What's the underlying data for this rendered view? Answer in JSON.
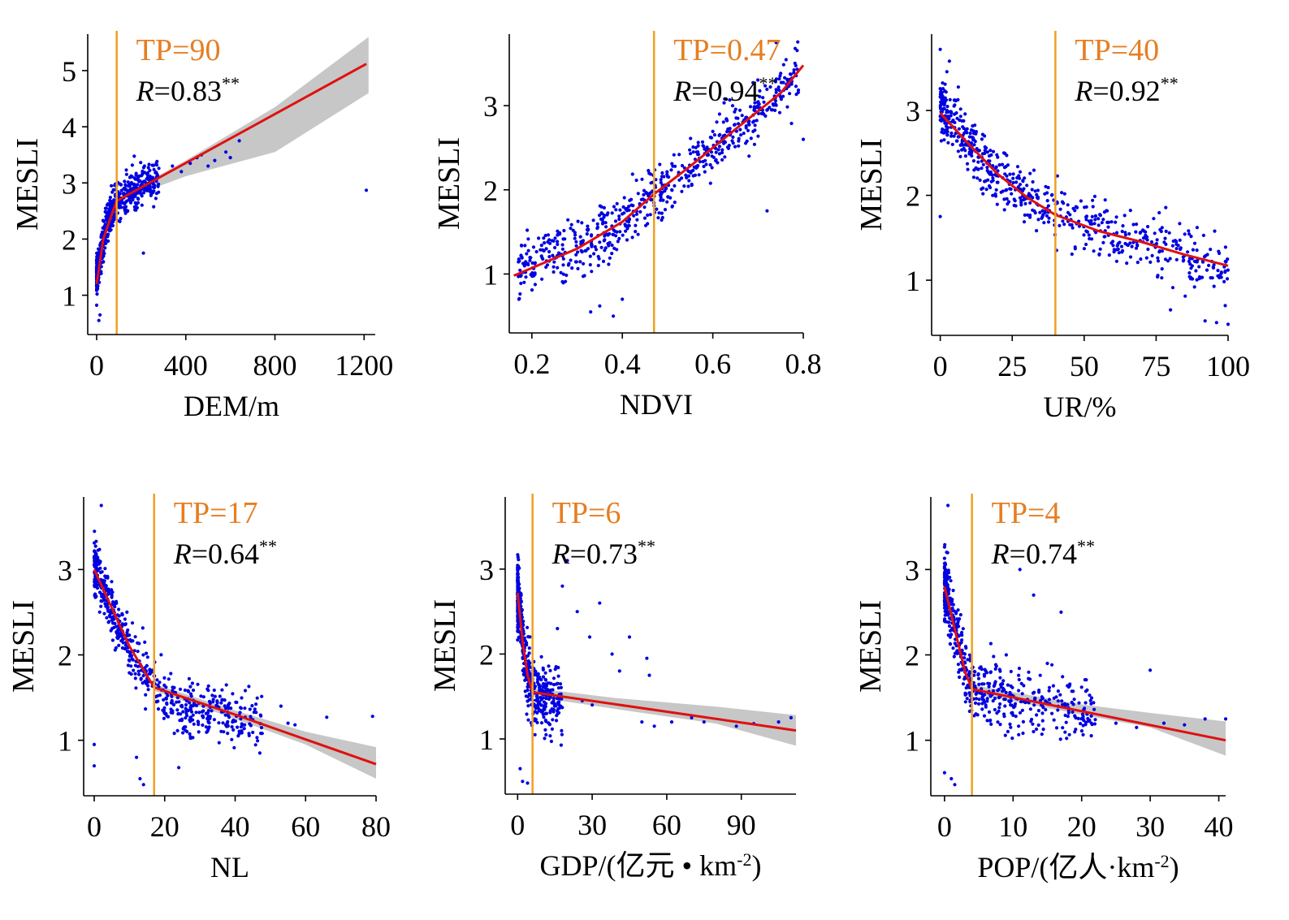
{
  "colors": {
    "points": "#0000e0",
    "fit_line": "#e01010",
    "band": "#bdbdbd",
    "threshold": "#f0a020",
    "tp_text": "#e67e22",
    "axis": "#000000"
  },
  "chart_data": [
    {
      "id": "dem",
      "type": "scatter",
      "xlabel": "DEM/m",
      "ylabel": "MESLI",
      "xlim": [
        -40,
        1250
      ],
      "ylim": [
        0.3,
        5.65
      ],
      "xticks": [
        0,
        400,
        800,
        1200
      ],
      "xtick_labels": [
        "0",
        "400",
        "800",
        "1200"
      ],
      "yticks": [
        1,
        2,
        3,
        4,
        5
      ],
      "ytick_labels": [
        "1",
        "2",
        "3",
        "4",
        "5"
      ],
      "tp": 90,
      "tp_label": "TP=90",
      "r_label": "=0.83",
      "r_stars": "**",
      "fit": [
        [
          0,
          1.2
        ],
        [
          30,
          2.0
        ],
        [
          60,
          2.35
        ],
        [
          90,
          2.68
        ],
        [
          1210,
          5.12
        ]
      ],
      "band": [
        [
          90,
          2.66,
          2.72
        ],
        [
          400,
          3.12,
          3.4
        ],
        [
          800,
          3.55,
          4.35
        ],
        [
          1220,
          4.6,
          5.6
        ]
      ],
      "cloud": {
        "x": [
          0,
          280
        ],
        "center": [
          [
            0,
            1.35
          ],
          [
            50,
            2.35
          ],
          [
            90,
            2.68
          ],
          [
            280,
            3.1
          ]
        ],
        "spread": 0.3,
        "x_skew": 2.2,
        "n": 620
      },
      "extra_points": [
        [
          340,
          3.3
        ],
        [
          380,
          3.2
        ],
        [
          420,
          3.35
        ],
        [
          450,
          3.45
        ],
        [
          470,
          3.5
        ],
        [
          500,
          3.3
        ],
        [
          530,
          3.4
        ],
        [
          580,
          3.55
        ],
        [
          600,
          3.45
        ],
        [
          640,
          3.75
        ],
        [
          210,
          1.75
        ],
        [
          1210,
          2.87
        ],
        [
          10,
          0.55
        ],
        [
          15,
          0.65
        ]
      ]
    },
    {
      "id": "ndvi",
      "type": "scatter",
      "xlabel": "NDVI",
      "ylabel": "MESLI",
      "xlim": [
        0.15,
        0.8
      ],
      "ylim": [
        0.3,
        3.85
      ],
      "xticks": [
        0.2,
        0.4,
        0.6,
        0.8
      ],
      "xtick_labels": [
        "0.2",
        "0.4",
        "0.6",
        "0.8"
      ],
      "yticks": [
        1,
        2,
        3
      ],
      "ytick_labels": [
        "1",
        "2",
        "3"
      ],
      "tp": 0.47,
      "tp_label": "TP=0.47",
      "r_label": "=0.94",
      "r_stars": "**",
      "fit": [
        [
          0.16,
          0.98
        ],
        [
          0.3,
          1.3
        ],
        [
          0.4,
          1.62
        ],
        [
          0.47,
          1.95
        ],
        [
          0.55,
          2.28
        ],
        [
          0.65,
          2.72
        ],
        [
          0.75,
          3.15
        ],
        [
          0.8,
          3.48
        ]
      ],
      "band": [],
      "cloud": {
        "x": [
          0.17,
          0.79
        ],
        "center": [
          [
            0.17,
            1.1
          ],
          [
            0.3,
            1.3
          ],
          [
            0.4,
            1.62
          ],
          [
            0.47,
            1.95
          ],
          [
            0.55,
            2.28
          ],
          [
            0.65,
            2.72
          ],
          [
            0.75,
            3.2
          ],
          [
            0.79,
            3.4
          ]
        ],
        "spread": 0.3,
        "x_skew": 1.0,
        "n": 620
      },
      "extra_points": [
        [
          0.33,
          0.55
        ],
        [
          0.35,
          0.62
        ],
        [
          0.38,
          0.5
        ],
        [
          0.4,
          0.7
        ],
        [
          0.72,
          1.75
        ],
        [
          0.8,
          2.6
        ],
        [
          0.74,
          3.75
        ],
        [
          0.68,
          2.4
        ]
      ]
    },
    {
      "id": "ur",
      "type": "scatter",
      "xlabel": "UR/%",
      "ylabel": "MESLI",
      "xlim": [
        -3,
        100
      ],
      "ylim": [
        0.35,
        3.9
      ],
      "xticks": [
        0,
        25,
        50,
        75,
        100
      ],
      "xtick_labels": [
        "0",
        "25",
        "50",
        "75",
        "100"
      ],
      "yticks": [
        1,
        2,
        3
      ],
      "ytick_labels": [
        "1",
        "2",
        "3"
      ],
      "tp": 40,
      "tp_label": "TP=40",
      "r_label": "=0.92",
      "r_stars": "**",
      "fit": [
        [
          0,
          2.97
        ],
        [
          10,
          2.6
        ],
        [
          20,
          2.25
        ],
        [
          30,
          1.98
        ],
        [
          40,
          1.77
        ],
        [
          55,
          1.58
        ],
        [
          70,
          1.45
        ],
        [
          85,
          1.3
        ],
        [
          100,
          1.17
        ]
      ],
      "band": [],
      "cloud": {
        "x": [
          0,
          100
        ],
        "center": [
          [
            0,
            3.1
          ],
          [
            10,
            2.6
          ],
          [
            20,
            2.25
          ],
          [
            30,
            1.98
          ],
          [
            40,
            1.77
          ],
          [
            55,
            1.58
          ],
          [
            70,
            1.45
          ],
          [
            85,
            1.3
          ],
          [
            100,
            1.17
          ]
        ],
        "spread": 0.32,
        "x_skew": 1.6,
        "n": 640
      },
      "extra_points": [
        [
          0,
          1.75
        ],
        [
          0,
          3.72
        ],
        [
          80,
          0.65
        ],
        [
          92,
          0.52
        ],
        [
          96,
          0.5
        ],
        [
          100,
          0.48
        ],
        [
          99,
          0.7
        ]
      ]
    },
    {
      "id": "nl",
      "type": "scatter",
      "xlabel": "NL",
      "ylabel": "MESLI",
      "xlim": [
        -3,
        80
      ],
      "ylim": [
        0.35,
        3.85
      ],
      "xticks": [
        0,
        20,
        40,
        60,
        80
      ],
      "xtick_labels": [
        "0",
        "20",
        "40",
        "60",
        "80"
      ],
      "yticks": [
        1,
        2,
        3
      ],
      "ytick_labels": [
        "1",
        "2",
        "3"
      ],
      "tp": 17,
      "tp_label": "TP=17",
      "r_label": "=0.64",
      "r_stars": "**",
      "fit": [
        [
          0,
          3.0
        ],
        [
          5,
          2.55
        ],
        [
          10,
          2.1
        ],
        [
          17,
          1.62
        ],
        [
          40,
          1.3
        ],
        [
          80,
          0.72
        ]
      ],
      "band": [
        [
          17,
          1.58,
          1.66
        ],
        [
          40,
          1.25,
          1.35
        ],
        [
          60,
          0.95,
          1.1
        ],
        [
          80,
          0.55,
          0.92
        ]
      ],
      "cloud": {
        "x": [
          0,
          48
        ],
        "center": [
          [
            0,
            3.05
          ],
          [
            5,
            2.55
          ],
          [
            10,
            2.1
          ],
          [
            17,
            1.62
          ],
          [
            25,
            1.35
          ],
          [
            40,
            1.25
          ],
          [
            48,
            1.2
          ]
        ],
        "spread": 0.27,
        "x_skew": 1.7,
        "n": 600
      },
      "extra_points": [
        [
          53,
          1.4
        ],
        [
          55,
          1.2
        ],
        [
          57,
          1.18
        ],
        [
          66,
          1.27
        ],
        [
          79,
          1.28
        ],
        [
          47,
          0.85
        ],
        [
          0,
          0.7
        ],
        [
          0,
          0.95
        ],
        [
          13,
          0.55
        ],
        [
          14,
          0.48
        ],
        [
          24,
          0.68
        ],
        [
          12,
          0.8
        ],
        [
          2,
          3.75
        ]
      ]
    },
    {
      "id": "gdp",
      "type": "scatter",
      "xlabel": "GDP/(亿元 • km-2)",
      "ylabel": "MESLI",
      "xlim": [
        -5,
        112
      ],
      "ylim": [
        0.35,
        3.85
      ],
      "xticks": [
        0,
        30,
        60,
        90
      ],
      "xtick_labels": [
        "0",
        "30",
        "60",
        "90"
      ],
      "yticks": [
        1,
        2,
        3
      ],
      "ytick_labels": [
        "1",
        "2",
        "3"
      ],
      "tp": 6,
      "tp_label": "TP=6",
      "r_label": "=0.73",
      "r_stars": "**",
      "fit": [
        [
          0,
          2.72
        ],
        [
          2,
          2.15
        ],
        [
          4,
          1.75
        ],
        [
          6,
          1.55
        ],
        [
          112,
          1.1
        ]
      ],
      "band": [
        [
          6,
          1.5,
          1.6
        ],
        [
          40,
          1.35,
          1.48
        ],
        [
          80,
          1.18,
          1.38
        ],
        [
          112,
          0.92,
          1.28
        ]
      ],
      "cloud": {
        "x": [
          0,
          18
        ],
        "center": [
          [
            0,
            2.75
          ],
          [
            2,
            2.1
          ],
          [
            4,
            1.75
          ],
          [
            6,
            1.55
          ],
          [
            12,
            1.45
          ],
          [
            18,
            1.4
          ]
        ],
        "spread": 0.35,
        "x_skew": 2.6,
        "n": 520
      },
      "extra_points": [
        [
          18,
          2.8
        ],
        [
          20,
          3.1
        ],
        [
          16,
          2.3
        ],
        [
          24,
          2.5
        ],
        [
          29,
          2.2
        ],
        [
          33,
          2.6
        ],
        [
          38,
          2.0
        ],
        [
          45,
          2.2
        ],
        [
          52,
          1.95
        ],
        [
          53,
          1.75
        ],
        [
          41,
          1.8
        ],
        [
          50,
          1.2
        ],
        [
          55,
          1.15
        ],
        [
          62,
          1.2
        ],
        [
          70,
          1.25
        ],
        [
          75,
          1.2
        ],
        [
          88,
          1.15
        ],
        [
          95,
          1.18
        ],
        [
          105,
          1.2
        ],
        [
          110,
          1.25
        ],
        [
          2,
          0.5
        ],
        [
          1,
          0.65
        ],
        [
          4,
          0.48
        ],
        [
          7,
          1.05
        ],
        [
          26,
          1.45
        ],
        [
          30,
          1.4
        ]
      ]
    },
    {
      "id": "pop",
      "type": "scatter",
      "xlabel": "POP/(亿人·km-2)",
      "ylabel": "MESLI",
      "xlim": [
        -2,
        41
      ],
      "ylim": [
        0.35,
        3.85
      ],
      "xticks": [
        0,
        10,
        20,
        30,
        40
      ],
      "xtick_labels": [
        "0",
        "10",
        "20",
        "30",
        "40"
      ],
      "yticks": [
        1,
        2,
        3
      ],
      "ytick_labels": [
        "1",
        "2",
        "3"
      ],
      "tp": 4,
      "tp_label": "TP=4",
      "r_label": "=0.74",
      "r_stars": "**",
      "fit": [
        [
          0,
          2.8
        ],
        [
          1.5,
          2.3
        ],
        [
          3,
          1.8
        ],
        [
          4,
          1.6
        ],
        [
          41,
          1.0
        ]
      ],
      "band": [
        [
          4,
          1.55,
          1.65
        ],
        [
          20,
          1.3,
          1.42
        ],
        [
          30,
          1.15,
          1.32
        ],
        [
          41,
          0.82,
          1.22
        ]
      ],
      "cloud": {
        "x": [
          0,
          22
        ],
        "center": [
          [
            0,
            2.85
          ],
          [
            1.5,
            2.3
          ],
          [
            3,
            1.8
          ],
          [
            4,
            1.6
          ],
          [
            12,
            1.45
          ],
          [
            22,
            1.3
          ]
        ],
        "spread": 0.35,
        "x_skew": 2.2,
        "n": 560
      },
      "extra_points": [
        [
          11,
          3.0
        ],
        [
          13,
          2.7
        ],
        [
          17,
          2.5
        ],
        [
          30,
          1.82
        ],
        [
          25,
          1.2
        ],
        [
          28,
          1.15
        ],
        [
          32,
          1.2
        ],
        [
          35,
          1.18
        ],
        [
          38,
          1.25
        ],
        [
          41,
          1.25
        ],
        [
          0,
          0.62
        ],
        [
          1,
          0.55
        ],
        [
          1.5,
          0.48
        ],
        [
          0.5,
          3.75
        ],
        [
          9,
          2.0
        ],
        [
          15,
          1.9
        ]
      ]
    }
  ]
}
